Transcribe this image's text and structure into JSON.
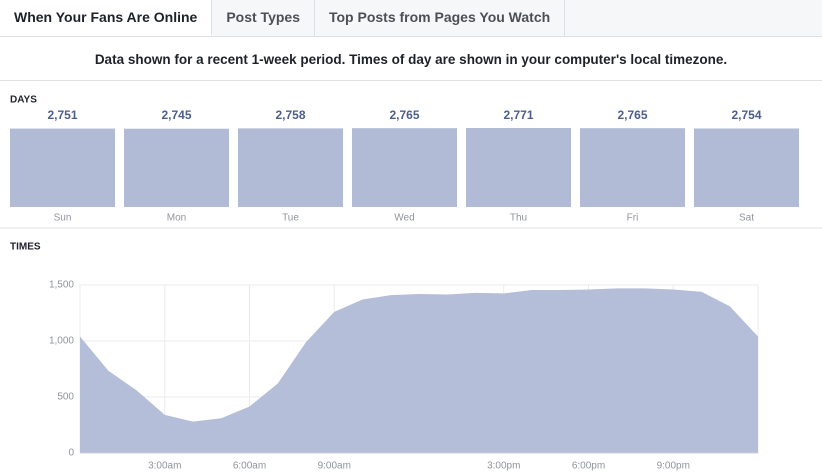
{
  "tabs": [
    "When Your Fans Are Online",
    "Post Types",
    "Top Posts from Pages You Watch"
  ],
  "notice": "Data shown for a recent 1-week period. Times of day are shown in your computer's local timezone.",
  "days": {
    "type": "bar",
    "label": "DAYS",
    "categories": [
      "Sun",
      "Mon",
      "Tue",
      "Wed",
      "Thu",
      "Fri",
      "Sat"
    ],
    "values": [
      2751,
      2745,
      2758,
      2765,
      2771,
      2765,
      2754
    ],
    "value_labels": [
      "2,751",
      "2,745",
      "2,758",
      "2,765",
      "2,771",
      "2,765",
      "2,754"
    ],
    "color": "#b1bbd6"
  },
  "times": {
    "type": "area",
    "label": "TIMES",
    "x": [
      0,
      1,
      2,
      3,
      4,
      5,
      6,
      7,
      8,
      9,
      10,
      11,
      12,
      13,
      14,
      15,
      16,
      17,
      18,
      19,
      20,
      21,
      22,
      23,
      24
    ],
    "values": [
      1040,
      735,
      560,
      340,
      280,
      310,
      415,
      620,
      990,
      1260,
      1370,
      1410,
      1420,
      1415,
      1430,
      1425,
      1455,
      1455,
      1460,
      1470,
      1470,
      1460,
      1440,
      1310,
      1040
    ],
    "color": "#b1bbd6",
    "xlim": [
      0,
      24
    ],
    "xticks": [
      {
        "value": 3,
        "label": "3:00am"
      },
      {
        "value": 6,
        "label": "6:00am"
      },
      {
        "value": 9,
        "label": "9:00am"
      },
      {
        "value": 15,
        "label": "3:00pm"
      },
      {
        "value": 18,
        "label": "6:00pm"
      },
      {
        "value": 21,
        "label": "9:00pm"
      }
    ],
    "ylim": [
      0,
      1500
    ],
    "yticks": [
      0,
      500,
      {
        "value": 1000,
        "label": "1,000"
      },
      {
        "value": 1500,
        "label": "1,500"
      }
    ],
    "grid": true
  }
}
